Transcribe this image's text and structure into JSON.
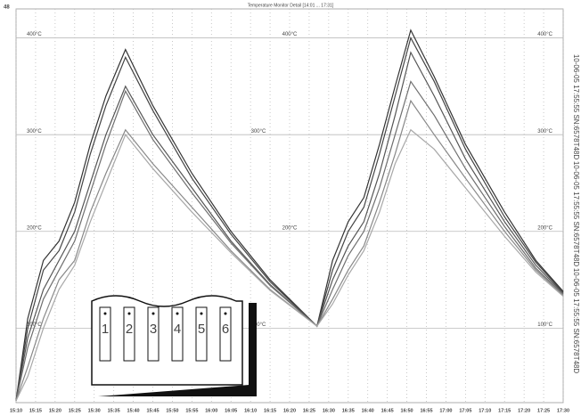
{
  "chart_data": {
    "type": "line",
    "title": "Temperature Monitor Detail [14:01 ... 17:31]",
    "corner_label": "48",
    "stamp": "10-06-05 17:55:55 SN:6578T48D",
    "sensor_labels": [
      "1",
      "2",
      "3",
      "4",
      "5",
      "6"
    ],
    "x": [
      910,
      913,
      917,
      921,
      925,
      929,
      933,
      938,
      945,
      955,
      965,
      975,
      987,
      991,
      995,
      999,
      1003,
      1007,
      1011,
      1017,
      1025,
      1035,
      1043,
      1050
    ],
    "xlim": [
      910,
      1050
    ],
    "xticks": [
      {
        "value": 910,
        "label": "15:10"
      },
      {
        "value": 915,
        "label": "15:15"
      },
      {
        "value": 920,
        "label": "15:20"
      },
      {
        "value": 925,
        "label": "15:25"
      },
      {
        "value": 930,
        "label": "15:30"
      },
      {
        "value": 935,
        "label": "15:35"
      },
      {
        "value": 940,
        "label": "15:40"
      },
      {
        "value": 945,
        "label": "15:45"
      },
      {
        "value": 950,
        "label": "15:50"
      },
      {
        "value": 955,
        "label": "15:55"
      },
      {
        "value": 960,
        "label": "16:00"
      },
      {
        "value": 965,
        "label": "16:05"
      },
      {
        "value": 970,
        "label": "16:10"
      },
      {
        "value": 975,
        "label": "16:15"
      },
      {
        "value": 980,
        "label": "16:20"
      },
      {
        "value": 985,
        "label": "16:25"
      },
      {
        "value": 990,
        "label": "16:30"
      },
      {
        "value": 995,
        "label": "16:35"
      },
      {
        "value": 1000,
        "label": "16:40"
      },
      {
        "value": 1005,
        "label": "16:45"
      },
      {
        "value": 1010,
        "label": "16:50"
      },
      {
        "value": 1015,
        "label": "16:55"
      },
      {
        "value": 1020,
        "label": "17:00"
      },
      {
        "value": 1025,
        "label": "17:05"
      },
      {
        "value": 1030,
        "label": "17:10"
      },
      {
        "value": 1035,
        "label": "17:15"
      },
      {
        "value": 1040,
        "label": "17:20"
      },
      {
        "value": 1045,
        "label": "17:25"
      },
      {
        "value": 1050,
        "label": "17:30"
      }
    ],
    "ylim": [
      23,
      430
    ],
    "yticks": [
      {
        "value": 100,
        "label": "100°C"
      },
      {
        "value": 200,
        "label": "200°C"
      },
      {
        "value": 300,
        "label": "300°C"
      },
      {
        "value": 400,
        "label": "400°C"
      }
    ],
    "grid": true,
    "series": [
      {
        "name": "1",
        "color": "#333333",
        "values": [
          25,
          110,
          170,
          190,
          230,
          290,
          340,
          388,
          330,
          260,
          200,
          150,
          102,
          170,
          210,
          235,
          290,
          350,
          408,
          360,
          290,
          220,
          170,
          138
        ]
      },
      {
        "name": "2",
        "color": "#444444",
        "values": [
          25,
          100,
          160,
          180,
          220,
          280,
          330,
          380,
          325,
          255,
          197,
          148,
          102,
          160,
          200,
          225,
          280,
          340,
          400,
          355,
          285,
          215,
          168,
          137
        ]
      },
      {
        "name": "3",
        "color": "#555555",
        "values": [
          25,
          90,
          140,
          170,
          200,
          250,
          300,
          350,
          300,
          245,
          190,
          145,
          102,
          150,
          185,
          210,
          260,
          320,
          385,
          340,
          275,
          210,
          165,
          136
        ]
      },
      {
        "name": "4",
        "color": "#6f6f6f",
        "values": [
          25,
          80,
          130,
          160,
          190,
          240,
          290,
          345,
          295,
          240,
          188,
          144,
          102,
          140,
          175,
          200,
          245,
          300,
          355,
          320,
          265,
          205,
          162,
          135
        ]
      },
      {
        "name": "5",
        "color": "#888888",
        "values": [
          25,
          60,
          110,
          150,
          170,
          220,
          260,
          305,
          270,
          225,
          180,
          140,
          102,
          130,
          160,
          185,
          230,
          280,
          335,
          300,
          255,
          200,
          160,
          134
        ]
      },
      {
        "name": "6",
        "color": "#a8a8a8",
        "values": [
          25,
          50,
          100,
          140,
          165,
          210,
          250,
          300,
          265,
          220,
          178,
          139,
          102,
          125,
          155,
          180,
          220,
          270,
          305,
          285,
          245,
          195,
          158,
          133
        ]
      }
    ]
  }
}
